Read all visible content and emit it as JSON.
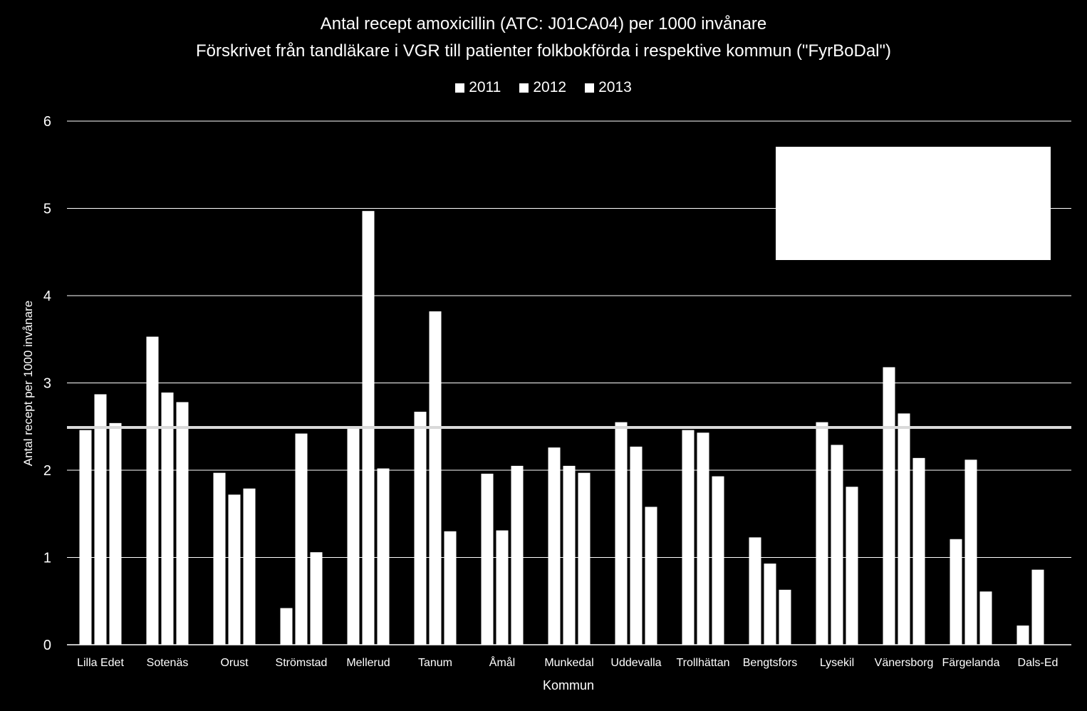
{
  "chart_data": {
    "type": "bar",
    "title": "Antal recept amoxicillin (ATC: J01CA04) per 1000 invånare",
    "subtitle": "Förskrivet från tandläkare i VGR till patienter folkbokförda i respektive kommun (\"FyrBoDal\")",
    "xlabel": "Kommun",
    "ylabel": "Antal recept per 1000 invånare",
    "ylim": [
      0,
      6
    ],
    "yticks": [
      "0",
      "1",
      "2",
      "3",
      "4",
      "5",
      "6"
    ],
    "grid": true,
    "legend_position": "top",
    "categories": [
      "Lilla Edet",
      "Sotenäs",
      "Orust",
      "Strömstad",
      "Mellerud",
      "Tanum",
      "Åmål",
      "Munkedal",
      "Uddevalla",
      "Trollhättan",
      "Bengtsfors",
      "Lysekil",
      "Vänersborg",
      "Färgelanda",
      "Dals-Ed"
    ],
    "series": [
      {
        "name": "2011",
        "values": [
          2.46,
          3.53,
          1.97,
          0.42,
          2.49,
          2.67,
          1.96,
          2.26,
          2.55,
          2.46,
          1.23,
          2.55,
          3.18,
          1.21,
          0.22
        ]
      },
      {
        "name": "2012",
        "values": [
          2.87,
          2.89,
          1.72,
          2.42,
          4.97,
          3.82,
          1.31,
          2.05,
          2.27,
          2.43,
          0.93,
          2.29,
          2.65,
          2.12,
          0.86
        ]
      },
      {
        "name": "2013",
        "values": [
          2.54,
          2.78,
          1.79,
          1.06,
          2.02,
          1.3,
          2.05,
          1.97,
          1.58,
          1.93,
          0.63,
          1.81,
          2.14,
          0.61,
          0
        ]
      }
    ],
    "reference_line": 2.49,
    "bar_color": "#ffffff",
    "background_color": "#000000",
    "gridline_color": "#ffffff"
  }
}
